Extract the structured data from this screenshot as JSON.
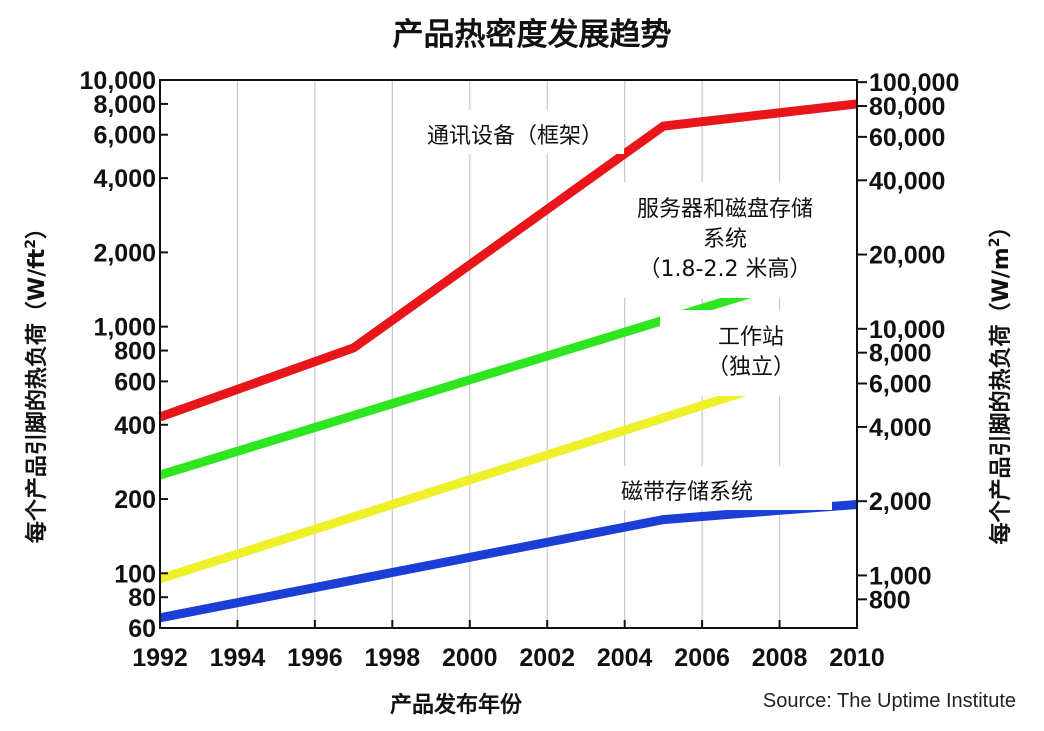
{
  "chart_data": {
    "type": "line",
    "title": "产品热密度发展趋势",
    "xlabel": "产品发布年份",
    "ylabel_left": "每个产品引脚的热负荷（W/ft²）",
    "ylabel_right": "每个产品引脚的热负荷（W/m²）",
    "ylabel_left_parts": {
      "prefix": "每个产品引脚的热负荷（",
      "unit": "W/ft",
      "sup": "2",
      "suffix": "）"
    },
    "ylabel_right_parts": {
      "prefix": "每个产品引脚的热负荷（",
      "unit": "W/m",
      "sup": "2",
      "suffix": "）"
    },
    "source": "Source: The Uptime Institute",
    "y_scale": "log",
    "xlim": [
      1992,
      2010
    ],
    "ylim_left": [
      60,
      10000
    ],
    "x_ticks": [
      "1992",
      "1994",
      "1996",
      "1998",
      "2000",
      "2002",
      "2004",
      "2006",
      "2008",
      "2010"
    ],
    "y_ticks_left": [
      "60",
      "80",
      "100",
      "200",
      "400",
      "600",
      "800",
      "1,000",
      "2,000",
      "4,000",
      "6,000",
      "8,000",
      "10,000"
    ],
    "y_ticks_right": [
      "800",
      "1,000",
      "2,000",
      "4,000",
      "6,000",
      "8,000",
      "10,000",
      "20,000",
      "40,000",
      "60,000",
      "80,000",
      "100,000"
    ],
    "grid": true,
    "series": [
      {
        "name": "通讯设备（框架）",
        "label_lines": [
          "通讯设备（框架）"
        ],
        "color": "#e8151b",
        "points": [
          [
            1992,
            430
          ],
          [
            1997,
            820
          ],
          [
            2005,
            6500
          ],
          [
            2010,
            8000
          ]
        ]
      },
      {
        "name": "服务器和磁盘存储系统（1.8-2.2 米高）",
        "label_lines": [
          "服务器和磁盘存储",
          "系统",
          "（1.8-2.2 米高）"
        ],
        "color": "#2ee620",
        "points": [
          [
            1992,
            250
          ],
          [
            2010,
            1850
          ]
        ]
      },
      {
        "name": "工作站（独立）",
        "label_lines": [
          "工作站",
          "（独立）"
        ],
        "color": "#eef02a",
        "points": [
          [
            1992,
            95
          ],
          [
            2010,
            760
          ]
        ]
      },
      {
        "name": "磁带存储系统",
        "label_lines": [
          "磁带存储系统"
        ],
        "color": "#1b3fd6",
        "points": [
          [
            1992,
            66
          ],
          [
            2005,
            165
          ],
          [
            2008,
            180
          ],
          [
            2010,
            190
          ]
        ]
      }
    ]
  }
}
